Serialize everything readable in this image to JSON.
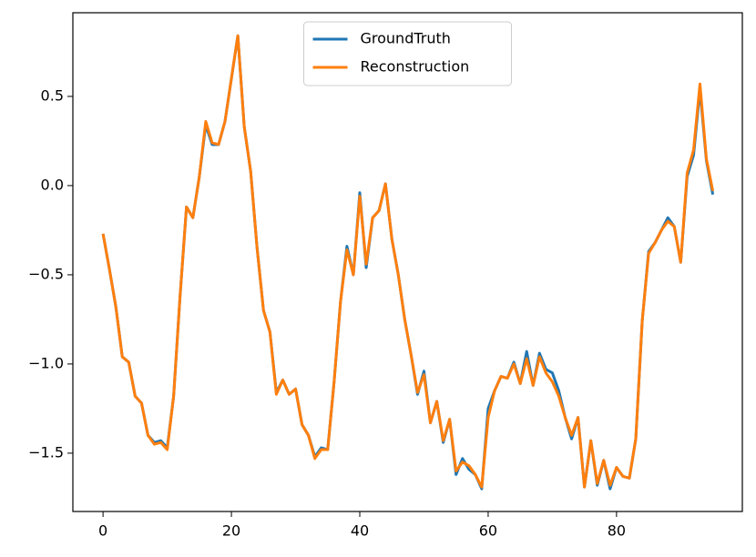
{
  "chart_data": {
    "type": "line",
    "x": [
      0,
      1,
      2,
      3,
      4,
      5,
      6,
      7,
      8,
      9,
      10,
      11,
      12,
      13,
      14,
      15,
      16,
      17,
      18,
      19,
      20,
      21,
      22,
      23,
      24,
      25,
      26,
      27,
      28,
      29,
      30,
      31,
      32,
      33,
      34,
      35,
      36,
      37,
      38,
      39,
      40,
      41,
      42,
      43,
      44,
      45,
      46,
      47,
      48,
      49,
      50,
      51,
      52,
      53,
      54,
      55,
      56,
      57,
      58,
      59,
      60,
      61,
      62,
      63,
      64,
      65,
      66,
      67,
      68,
      69,
      70,
      71,
      72,
      73,
      74,
      75,
      76,
      77,
      78,
      79,
      80,
      81,
      82,
      83,
      84,
      85,
      86,
      87,
      88,
      89,
      90,
      91,
      92,
      93,
      94,
      95
    ],
    "series": [
      {
        "name": "GroundTruth",
        "color": "#1f77b4",
        "values": [
          -0.27,
          -0.47,
          -0.68,
          -0.96,
          -0.99,
          -1.18,
          -1.22,
          -1.4,
          -1.44,
          -1.43,
          -1.47,
          -1.18,
          -0.62,
          -0.12,
          -0.18,
          0.05,
          0.34,
          0.23,
          0.23,
          0.36,
          0.6,
          0.84,
          0.33,
          0.08,
          -0.35,
          -0.7,
          -0.82,
          -1.16,
          -1.09,
          -1.17,
          -1.14,
          -1.34,
          -1.4,
          -1.52,
          -1.47,
          -1.48,
          -1.1,
          -0.65,
          -0.34,
          -0.5,
          -0.04,
          -0.46,
          -0.18,
          -0.14,
          0.01,
          -0.3,
          -0.5,
          -0.75,
          -0.95,
          -1.17,
          -1.04,
          -1.33,
          -1.21,
          -1.44,
          -1.31,
          -1.62,
          -1.53,
          -1.59,
          -1.62,
          -1.7,
          -1.25,
          -1.15,
          -1.07,
          -1.08,
          -0.99,
          -1.11,
          -0.93,
          -1.12,
          -0.94,
          -1.03,
          -1.05,
          -1.15,
          -1.3,
          -1.42,
          -1.3,
          -1.69,
          -1.43,
          -1.68,
          -1.54,
          -1.7,
          -1.58,
          -1.63,
          -1.64,
          -1.42,
          -0.76,
          -0.37,
          -0.32,
          -0.25,
          -0.18,
          -0.23,
          -0.43,
          0.05,
          0.17,
          0.54,
          0.14,
          -0.05
        ]
      },
      {
        "name": "Reconstruction",
        "color": "#ff7f0e",
        "values": [
          -0.27,
          -0.47,
          -0.68,
          -0.96,
          -0.99,
          -1.18,
          -1.22,
          -1.4,
          -1.45,
          -1.44,
          -1.48,
          -1.18,
          -0.62,
          -0.12,
          -0.18,
          0.05,
          0.36,
          0.24,
          0.23,
          0.36,
          0.6,
          0.84,
          0.33,
          0.08,
          -0.35,
          -0.7,
          -0.82,
          -1.17,
          -1.09,
          -1.17,
          -1.14,
          -1.34,
          -1.4,
          -1.53,
          -1.48,
          -1.48,
          -1.1,
          -0.65,
          -0.36,
          -0.5,
          -0.06,
          -0.44,
          -0.18,
          -0.14,
          0.01,
          -0.3,
          -0.5,
          -0.75,
          -0.95,
          -1.16,
          -1.06,
          -1.33,
          -1.21,
          -1.43,
          -1.31,
          -1.6,
          -1.55,
          -1.57,
          -1.62,
          -1.69,
          -1.3,
          -1.15,
          -1.07,
          -1.08,
          -1.0,
          -1.11,
          -0.97,
          -1.12,
          -0.96,
          -1.05,
          -1.1,
          -1.18,
          -1.3,
          -1.4,
          -1.3,
          -1.69,
          -1.43,
          -1.67,
          -1.54,
          -1.68,
          -1.58,
          -1.63,
          -1.64,
          -1.42,
          -0.76,
          -0.38,
          -0.32,
          -0.25,
          -0.2,
          -0.23,
          -0.43,
          0.07,
          0.2,
          0.57,
          0.15,
          -0.03
        ]
      }
    ],
    "xlim": [
      -4.7,
      99.6
    ],
    "ylim": [
      -1.827,
      0.969
    ],
    "xticks": [
      0,
      20,
      40,
      60,
      80
    ],
    "yticks": [
      {
        "value": -1.5,
        "label": "−1.5"
      },
      {
        "value": -1.0,
        "label": "−1.0"
      },
      {
        "value": -0.5,
        "label": "−0.5"
      },
      {
        "value": 0,
        "label": "0.0"
      },
      0.5
    ],
    "legend": "upper center"
  }
}
